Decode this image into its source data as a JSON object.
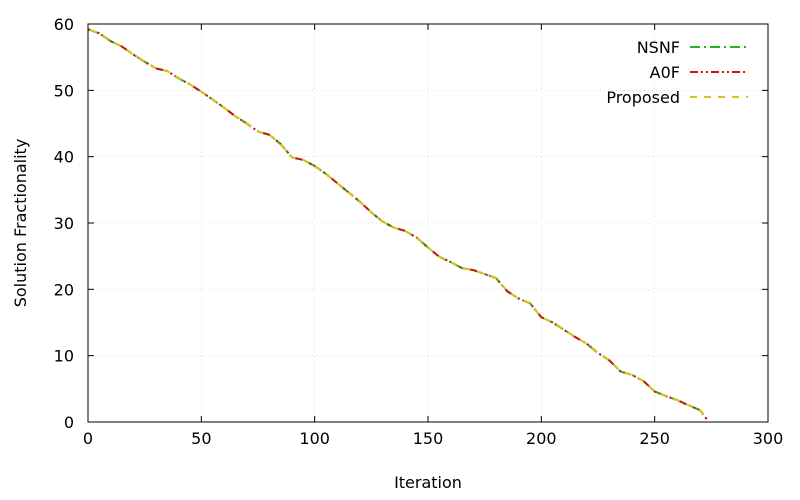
{
  "chart_data": {
    "type": "line",
    "title": "",
    "xlabel": "Iteration",
    "ylabel": "Solution Fractionality",
    "xlim": [
      0,
      300
    ],
    "ylim": [
      0,
      60
    ],
    "xticks": [
      0,
      50,
      100,
      150,
      200,
      250,
      300
    ],
    "yticks": [
      0,
      10,
      20,
      30,
      40,
      50,
      60
    ],
    "grid": true,
    "legend_position": "top-right",
    "series": [
      {
        "name": "NSNF",
        "color": "#22b422",
        "dash": "dash-dot",
        "x": [
          0,
          5,
          10,
          15,
          20,
          25,
          30,
          35,
          40,
          45,
          50,
          55,
          60,
          65,
          70,
          75,
          80,
          85,
          90,
          95,
          100,
          105,
          110,
          115,
          120,
          125,
          130,
          135,
          140,
          145,
          150,
          155,
          160,
          165,
          170,
          175,
          180,
          185,
          190,
          195,
          200,
          205,
          210,
          215,
          220,
          225,
          230,
          235,
          240,
          245,
          250,
          255,
          260,
          265,
          270,
          273
        ],
        "y": [
          59.2,
          58.6,
          57.4,
          56.6,
          55.4,
          54.3,
          53.3,
          52.9,
          51.8,
          50.9,
          49.8,
          48.6,
          47.4,
          46.1,
          45.0,
          43.8,
          43.3,
          41.9,
          39.9,
          39.5,
          38.6,
          37.4,
          36.0,
          34.6,
          33.2,
          31.6,
          30.2,
          29.3,
          28.8,
          27.8,
          26.3,
          24.9,
          24.1,
          23.2,
          22.9,
          22.3,
          21.7,
          19.7,
          18.6,
          17.9,
          15.8,
          15.0,
          13.9,
          12.8,
          11.8,
          10.4,
          9.3,
          7.6,
          7.1,
          6.2,
          4.6,
          3.9,
          3.3,
          2.5,
          1.8,
          0.4
        ]
      },
      {
        "name": "A0F",
        "color": "#c81414",
        "dash": "dash-dot-dot",
        "x": [
          0,
          5,
          10,
          15,
          20,
          25,
          30,
          35,
          40,
          45,
          50,
          55,
          60,
          65,
          70,
          75,
          80,
          85,
          90,
          95,
          100,
          105,
          110,
          115,
          120,
          125,
          130,
          135,
          140,
          145,
          150,
          155,
          160,
          165,
          170,
          175,
          180,
          185,
          190,
          195,
          200,
          205,
          210,
          215,
          220,
          225,
          230,
          235,
          240,
          245,
          250,
          255,
          260,
          265,
          270,
          273
        ],
        "y": [
          59.2,
          58.6,
          57.4,
          56.6,
          55.4,
          54.3,
          53.3,
          52.9,
          51.8,
          50.9,
          49.8,
          48.6,
          47.4,
          46.1,
          45.0,
          43.8,
          43.3,
          41.9,
          39.9,
          39.5,
          38.6,
          37.4,
          36.0,
          34.6,
          33.2,
          31.6,
          30.2,
          29.3,
          28.8,
          27.8,
          26.3,
          24.9,
          24.1,
          23.2,
          22.9,
          22.3,
          21.7,
          19.7,
          18.6,
          17.9,
          15.8,
          15.0,
          13.9,
          12.8,
          11.8,
          10.4,
          9.3,
          7.6,
          7.1,
          6.2,
          4.6,
          3.9,
          3.3,
          2.5,
          1.8,
          0.4
        ]
      },
      {
        "name": "Proposed",
        "color": "#d2c814",
        "dash": "dashed",
        "x": [
          0,
          5,
          10,
          15,
          20,
          25,
          30,
          35,
          40,
          45,
          50,
          55,
          60,
          65,
          70,
          75,
          80,
          85,
          90,
          95,
          100,
          105,
          110,
          115,
          120,
          125,
          130,
          135,
          140,
          145,
          150,
          155,
          160,
          165,
          170,
          175,
          180,
          185,
          190,
          195,
          200,
          205,
          210,
          215,
          220,
          225,
          230,
          235,
          240,
          245,
          250,
          255,
          260,
          265,
          270,
          273
        ],
        "y": [
          59.2,
          58.6,
          57.4,
          56.6,
          55.4,
          54.3,
          53.3,
          52.9,
          51.8,
          50.9,
          49.8,
          48.6,
          47.4,
          46.1,
          45.0,
          43.8,
          43.3,
          41.9,
          39.9,
          39.5,
          38.6,
          37.4,
          36.0,
          34.6,
          33.2,
          31.6,
          30.2,
          29.3,
          28.8,
          27.8,
          26.3,
          24.9,
          24.1,
          23.2,
          22.9,
          22.3,
          21.7,
          19.7,
          18.6,
          17.9,
          15.8,
          15.0,
          13.9,
          12.8,
          11.8,
          10.4,
          9.3,
          7.6,
          7.1,
          6.2,
          4.6,
          3.9,
          3.3,
          2.5,
          1.8,
          0.4
        ]
      }
    ]
  }
}
